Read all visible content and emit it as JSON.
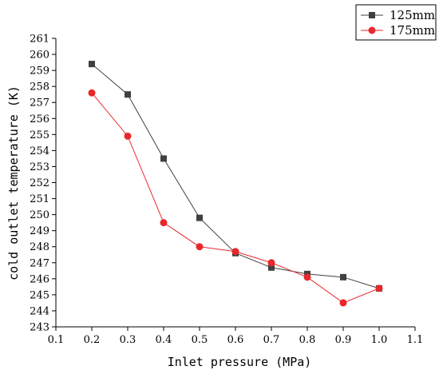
{
  "chart_data": {
    "type": "line",
    "title": "",
    "xlabel": "Inlet pressure (MPa)",
    "ylabel": "cold outlet temperature (K)",
    "xlim": [
      0.1,
      1.1
    ],
    "ylim": [
      243,
      261
    ],
    "x_ticks": [
      "0.1",
      "0.2",
      "0.3",
      "0.4",
      "0.5",
      "0.6",
      "0.7",
      "0.8",
      "0.9",
      "1.0",
      "1.1"
    ],
    "y_ticks": [
      "243",
      "244",
      "245",
      "246",
      "247",
      "248",
      "249",
      "250",
      "251",
      "252",
      "253",
      "254",
      "255",
      "256",
      "257",
      "258",
      "259",
      "260",
      "261"
    ],
    "grid": false,
    "legend_position": "top-right",
    "x": [
      0.2,
      0.3,
      0.4,
      0.5,
      0.6,
      0.7,
      0.8,
      0.9,
      1.0
    ],
    "series": [
      {
        "name": "125mm",
        "color": "#404040",
        "marker": "square",
        "values": [
          259.4,
          257.5,
          253.5,
          249.8,
          247.6,
          246.7,
          246.3,
          246.1,
          245.4
        ]
      },
      {
        "name": "175mm",
        "color": "#e8282b",
        "marker": "circle",
        "values": [
          257.6,
          254.9,
          249.5,
          248.0,
          247.7,
          247.0,
          246.1,
          244.5,
          245.4
        ]
      }
    ]
  }
}
